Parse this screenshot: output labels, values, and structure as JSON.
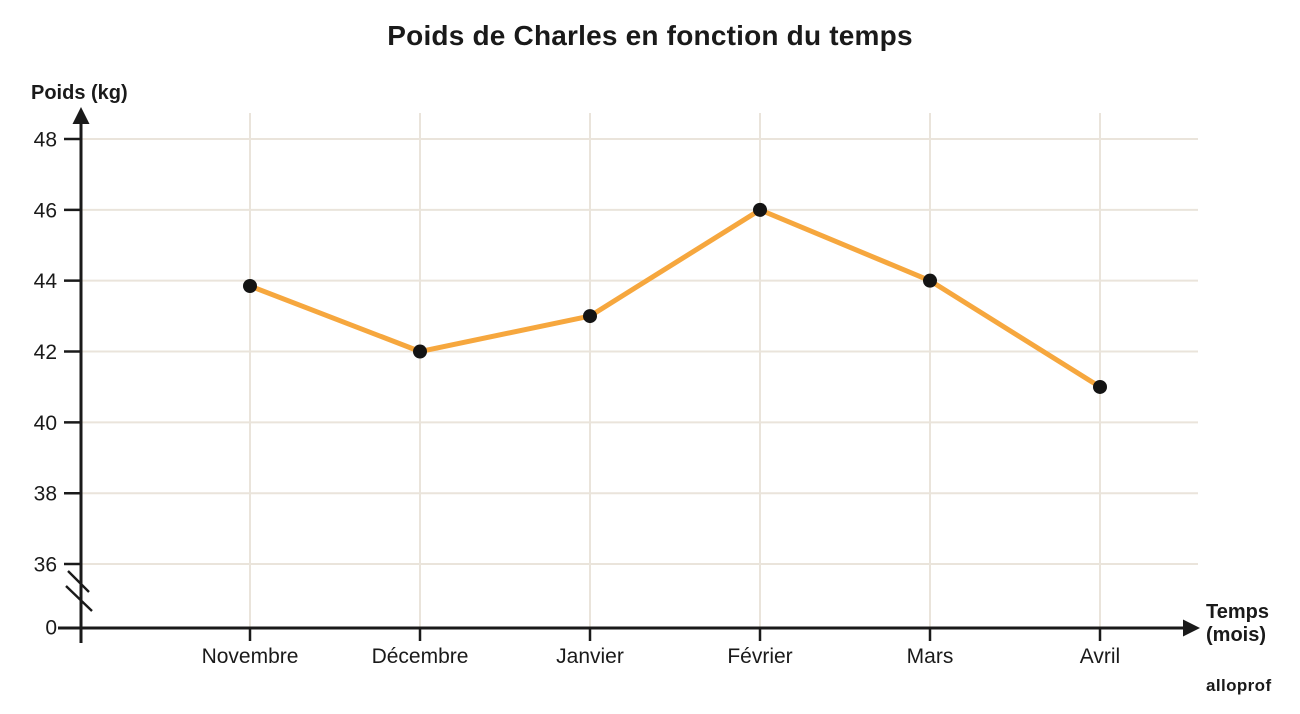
{
  "title": "Poids de Charles en fonction du temps",
  "y_axis": {
    "label": "Poids (kg)"
  },
  "x_axis": {
    "line1": "Temps",
    "line2": "(mois)"
  },
  "branding": "alloprof",
  "colors": {
    "line": "#F6A73E",
    "point": "#141414",
    "grid": "#EAE4DB",
    "axis": "#1a1a1a",
    "text": "#1a1a1a"
  },
  "chart_data": {
    "type": "line",
    "title": "Poids de Charles en fonction du temps",
    "xlabel": "Temps (mois)",
    "ylabel": "Poids (kg)",
    "categories": [
      "Novembre",
      "Décembre",
      "Janvier",
      "Février",
      "Mars",
      "Avril"
    ],
    "values": [
      43.85,
      42,
      43,
      46,
      44,
      41
    ],
    "y_ticks": [
      36,
      38,
      40,
      42,
      44,
      46,
      48
    ],
    "origin_label": "0",
    "axis_break": true,
    "ylim": [
      36,
      48
    ],
    "grid": true,
    "legend": false
  }
}
